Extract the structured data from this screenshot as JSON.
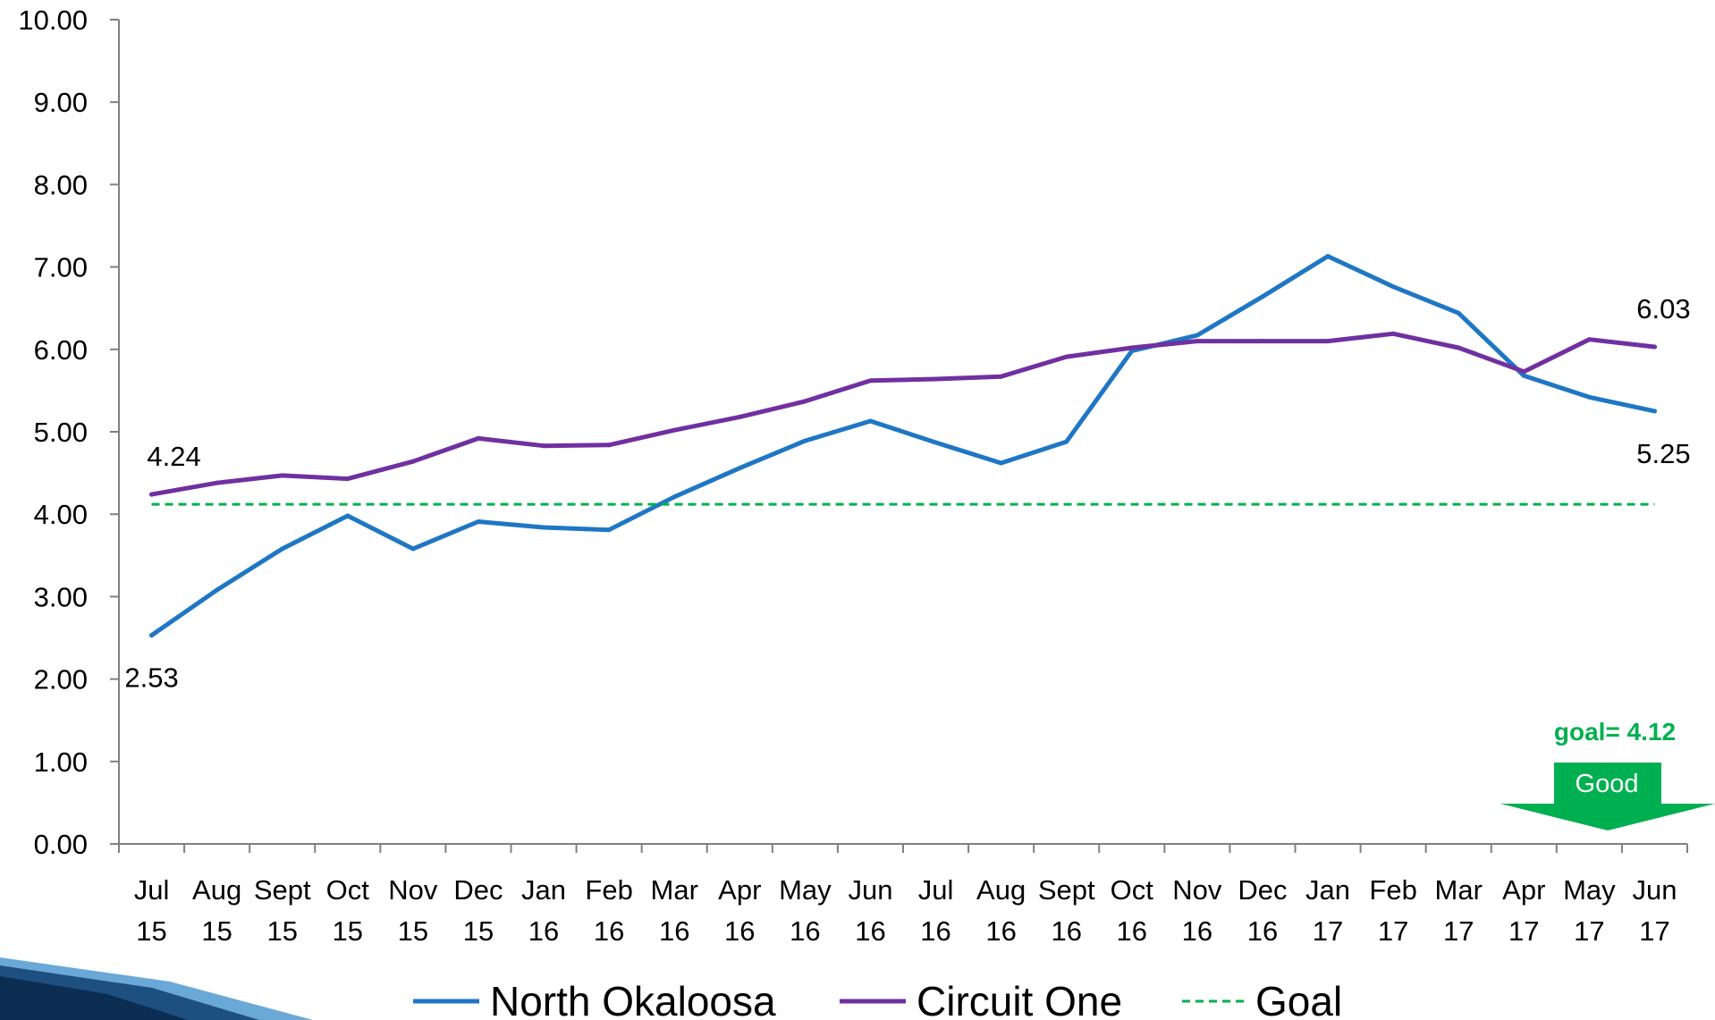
{
  "chart_data": {
    "type": "line",
    "categories": [
      [
        "Jul",
        "15"
      ],
      [
        "Aug",
        "15"
      ],
      [
        "Sept",
        "15"
      ],
      [
        "Oct",
        "15"
      ],
      [
        "Nov",
        "15"
      ],
      [
        "Dec",
        "15"
      ],
      [
        "Jan",
        "16"
      ],
      [
        "Feb",
        "16"
      ],
      [
        "Mar",
        "16"
      ],
      [
        "Apr",
        "16"
      ],
      [
        "May",
        "16"
      ],
      [
        "Jun",
        "16"
      ],
      [
        "Jul",
        "16"
      ],
      [
        "Aug",
        "16"
      ],
      [
        "Sept",
        "16"
      ],
      [
        "Oct",
        "16"
      ],
      [
        "Nov",
        "16"
      ],
      [
        "Dec",
        "16"
      ],
      [
        "Jan",
        "17"
      ],
      [
        "Feb",
        "17"
      ],
      [
        "Mar",
        "17"
      ],
      [
        "Apr",
        "17"
      ],
      [
        "May",
        "17"
      ],
      [
        "Jun",
        "17"
      ]
    ],
    "ylim": [
      0,
      10
    ],
    "yticks": [
      "0.00",
      "1.00",
      "2.00",
      "3.00",
      "4.00",
      "5.00",
      "6.00",
      "7.00",
      "8.00",
      "9.00",
      "10.00"
    ],
    "series": [
      {
        "name": "North Okaloosa",
        "color": "#1f77c4",
        "values": [
          2.53,
          3.08,
          3.58,
          3.98,
          3.58,
          3.91,
          3.84,
          3.81,
          4.21,
          4.56,
          4.89,
          5.13,
          4.87,
          4.62,
          4.88,
          5.98,
          6.17,
          6.64,
          7.13,
          6.76,
          6.44,
          5.68,
          5.42,
          5.25
        ]
      },
      {
        "name": "Circuit One",
        "color": "#7030a0",
        "values": [
          4.24,
          4.38,
          4.47,
          4.43,
          4.64,
          4.92,
          4.83,
          4.84,
          5.02,
          5.18,
          5.37,
          5.62,
          5.64,
          5.67,
          5.91,
          6.02,
          6.1,
          6.1,
          6.1,
          6.19,
          6.02,
          5.73,
          6.12,
          6.03
        ]
      },
      {
        "name": "Goal",
        "color": "#00b050",
        "dashed": true,
        "value": 4.12
      }
    ],
    "data_labels": [
      {
        "text": "4.24",
        "series": "Circuit One",
        "index": 0
      },
      {
        "text": "2.53",
        "series": "North Okaloosa",
        "index": 0
      },
      {
        "text": "6.03",
        "series": "Circuit One",
        "index": 23
      },
      {
        "text": "5.25",
        "series": "North Okaloosa",
        "index": 23
      }
    ],
    "annotations": {
      "goal_note": "goal= 4.12",
      "direction_label": "Good",
      "direction_color": "#00b050"
    },
    "legend": {
      "placement": "bottom",
      "entries": [
        "North Okaloosa",
        "Circuit One",
        "Goal"
      ]
    }
  }
}
